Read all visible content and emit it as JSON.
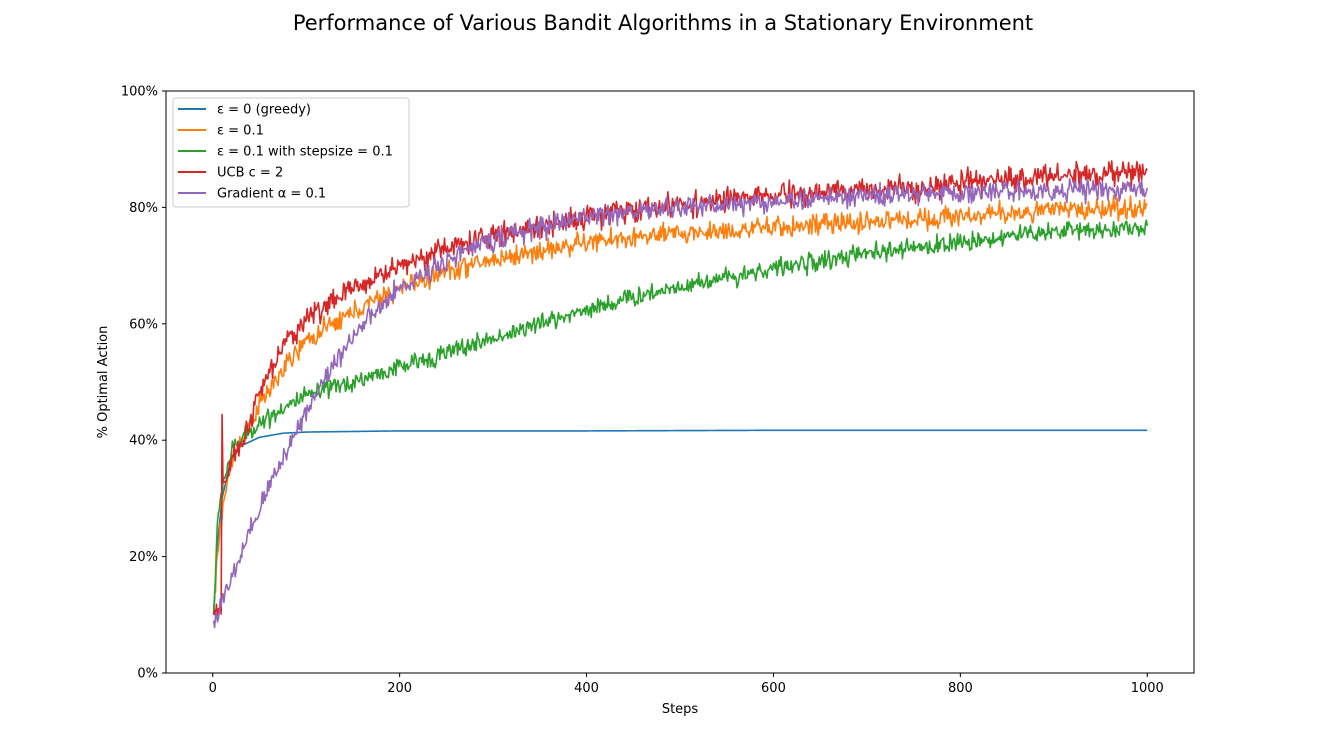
{
  "chart_data": {
    "type": "line",
    "title": "Performance of Various Bandit Algorithms in a Stationary Environment",
    "xlabel": "Steps",
    "ylabel": "% Optimal Action",
    "xlim": [
      -50,
      1050
    ],
    "ylim": [
      0,
      1
    ],
    "xticks": [
      0,
      200,
      400,
      600,
      800,
      1000
    ],
    "xtick_labels": [
      "0",
      "200",
      "400",
      "600",
      "800",
      "1000"
    ],
    "yticks": [
      0,
      0.2,
      0.4,
      0.6,
      0.8,
      1.0
    ],
    "ytick_labels": [
      "0%",
      "20%",
      "40%",
      "60%",
      "80%",
      "100%"
    ],
    "grid": false,
    "legend_position": "upper-left",
    "noisy": true,
    "series": [
      {
        "name": "ε = 0 (greedy)",
        "color": "#1f77b4",
        "noise": 0.0,
        "x": [
          1,
          5,
          10,
          20,
          30,
          50,
          75,
          100,
          150,
          200,
          400,
          600,
          800,
          1000
        ],
        "y": [
          0.1,
          0.22,
          0.3,
          0.37,
          0.39,
          0.405,
          0.412,
          0.414,
          0.415,
          0.416,
          0.416,
          0.417,
          0.417,
          0.417
        ]
      },
      {
        "name": "ε = 0.1",
        "color": "#ff7f0e",
        "noise": 0.009,
        "x": [
          1,
          5,
          10,
          20,
          30,
          50,
          75,
          100,
          150,
          200,
          250,
          300,
          400,
          500,
          600,
          700,
          800,
          900,
          1000
        ],
        "y": [
          0.1,
          0.2,
          0.28,
          0.36,
          0.4,
          0.46,
          0.52,
          0.57,
          0.62,
          0.66,
          0.69,
          0.71,
          0.74,
          0.755,
          0.765,
          0.775,
          0.785,
          0.795,
          0.8
        ]
      },
      {
        "name": "ε = 0.1 with stepsize = 0.1",
        "color": "#2ca02c",
        "noise": 0.008,
        "x": [
          1,
          5,
          10,
          20,
          30,
          50,
          75,
          100,
          150,
          200,
          300,
          400,
          500,
          600,
          700,
          800,
          900,
          1000
        ],
        "y": [
          0.1,
          0.25,
          0.32,
          0.38,
          0.4,
          0.43,
          0.455,
          0.475,
          0.5,
          0.525,
          0.575,
          0.625,
          0.665,
          0.695,
          0.72,
          0.74,
          0.76,
          0.765
        ]
      },
      {
        "name": "UCB c = 2",
        "color": "#d62728",
        "noise": 0.01,
        "x": [
          1,
          9,
          10,
          11,
          12,
          15,
          20,
          30,
          50,
          75,
          100,
          150,
          200,
          250,
          300,
          400,
          500,
          600,
          700,
          800,
          900,
          1000
        ],
        "y": [
          0.1,
          0.1,
          0.45,
          0.33,
          0.34,
          0.33,
          0.36,
          0.39,
          0.48,
          0.56,
          0.61,
          0.66,
          0.7,
          0.73,
          0.75,
          0.785,
          0.805,
          0.82,
          0.83,
          0.84,
          0.855,
          0.86
        ]
      },
      {
        "name": "Gradient α = 0.1",
        "color": "#9467bd",
        "noise": 0.009,
        "x": [
          1,
          5,
          10,
          20,
          30,
          40,
          50,
          60,
          75,
          100,
          125,
          150,
          200,
          250,
          300,
          400,
          500,
          600,
          700,
          800,
          900,
          1000
        ],
        "y": [
          0.09,
          0.1,
          0.12,
          0.16,
          0.2,
          0.24,
          0.28,
          0.32,
          0.37,
          0.45,
          0.52,
          0.58,
          0.66,
          0.71,
          0.745,
          0.785,
          0.8,
          0.81,
          0.82,
          0.825,
          0.83,
          0.83
        ]
      }
    ]
  }
}
